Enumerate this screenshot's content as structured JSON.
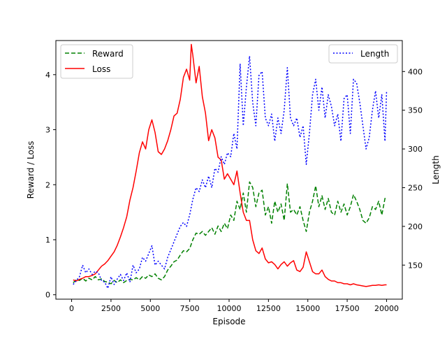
{
  "chart_data": {
    "type": "line",
    "xlabel": "Episode",
    "ylabel_left": "Reward / Loss",
    "ylabel_right": "Length",
    "xlim": [
      -1000,
      21000
    ],
    "ylim_left": [
      -0.08,
      4.62
    ],
    "ylim_right": [
      106,
      440
    ],
    "x_ticks": [
      0,
      2500,
      5000,
      7500,
      10000,
      12500,
      15000,
      17500,
      20000
    ],
    "y_ticks_left": [
      0,
      1,
      2,
      3,
      4
    ],
    "y_ticks_right": [
      150,
      200,
      250,
      300,
      350,
      400
    ],
    "grid": false,
    "legend_left": {
      "placement": "upper-left",
      "entries": [
        "Reward",
        "Loss"
      ]
    },
    "legend_right": {
      "placement": "upper-right",
      "entries": [
        "Length"
      ]
    },
    "series": [
      {
        "name": "Reward",
        "axis": "left",
        "color": "#008000",
        "style": "dashed",
        "points": [
          [
            100,
            0.22
          ],
          [
            300,
            0.27
          ],
          [
            500,
            0.26
          ],
          [
            700,
            0.3
          ],
          [
            900,
            0.25
          ],
          [
            1100,
            0.3
          ],
          [
            1300,
            0.27
          ],
          [
            1500,
            0.33
          ],
          [
            1700,
            0.27
          ],
          [
            1900,
            0.29
          ],
          [
            2100,
            0.24
          ],
          [
            2300,
            0.23
          ],
          [
            2500,
            0.2
          ],
          [
            2700,
            0.26
          ],
          [
            2900,
            0.22
          ],
          [
            3100,
            0.27
          ],
          [
            3300,
            0.22
          ],
          [
            3500,
            0.26
          ],
          [
            3700,
            0.28
          ],
          [
            3900,
            0.27
          ],
          [
            4100,
            0.31
          ],
          [
            4300,
            0.27
          ],
          [
            4500,
            0.33
          ],
          [
            4700,
            0.3
          ],
          [
            4900,
            0.36
          ],
          [
            5100,
            0.33
          ],
          [
            5300,
            0.38
          ],
          [
            5500,
            0.3
          ],
          [
            5700,
            0.27
          ],
          [
            5900,
            0.33
          ],
          [
            6100,
            0.45
          ],
          [
            6300,
            0.52
          ],
          [
            6500,
            0.6
          ],
          [
            6700,
            0.63
          ],
          [
            6900,
            0.72
          ],
          [
            7100,
            0.8
          ],
          [
            7300,
            0.78
          ],
          [
            7500,
            0.84
          ],
          [
            7700,
            1.0
          ],
          [
            7900,
            1.12
          ],
          [
            8100,
            1.1
          ],
          [
            8300,
            1.15
          ],
          [
            8500,
            1.08
          ],
          [
            8700,
            1.15
          ],
          [
            8900,
            1.22
          ],
          [
            9100,
            1.1
          ],
          [
            9300,
            1.25
          ],
          [
            9500,
            1.15
          ],
          [
            9700,
            1.3
          ],
          [
            9900,
            1.2
          ],
          [
            10100,
            1.45
          ],
          [
            10300,
            1.35
          ],
          [
            10500,
            1.7
          ],
          [
            10700,
            1.55
          ],
          [
            10900,
            1.85
          ],
          [
            11100,
            1.5
          ],
          [
            11300,
            2.05
          ],
          [
            11500,
            1.95
          ],
          [
            11700,
            1.6
          ],
          [
            11900,
            1.85
          ],
          [
            12100,
            1.9
          ],
          [
            12300,
            1.45
          ],
          [
            12500,
            1.6
          ],
          [
            12700,
            1.3
          ],
          [
            12900,
            1.7
          ],
          [
            13100,
            1.5
          ],
          [
            13300,
            1.65
          ],
          [
            13500,
            1.35
          ],
          [
            13700,
            2.02
          ],
          [
            13900,
            1.5
          ],
          [
            14100,
            1.55
          ],
          [
            14300,
            1.45
          ],
          [
            14500,
            1.6
          ],
          [
            14700,
            1.35
          ],
          [
            14900,
            1.15
          ],
          [
            15100,
            1.5
          ],
          [
            15300,
            1.7
          ],
          [
            15500,
            1.98
          ],
          [
            15700,
            1.6
          ],
          [
            15900,
            1.8
          ],
          [
            16100,
            1.55
          ],
          [
            16300,
            1.75
          ],
          [
            16500,
            1.5
          ],
          [
            16700,
            1.45
          ],
          [
            16900,
            1.7
          ],
          [
            17100,
            1.5
          ],
          [
            17300,
            1.65
          ],
          [
            17500,
            1.45
          ],
          [
            17700,
            1.6
          ],
          [
            17900,
            1.82
          ],
          [
            18100,
            1.7
          ],
          [
            18300,
            1.55
          ],
          [
            18500,
            1.35
          ],
          [
            18700,
            1.3
          ],
          [
            18900,
            1.4
          ],
          [
            19100,
            1.6
          ],
          [
            19300,
            1.55
          ],
          [
            19500,
            1.7
          ],
          [
            19700,
            1.45
          ],
          [
            19900,
            1.75
          ],
          [
            20000,
            1.75
          ]
        ]
      },
      {
        "name": "Loss",
        "axis": "left",
        "color": "#ff0000",
        "style": "solid",
        "points": [
          [
            100,
            0.27
          ],
          [
            300,
            0.25
          ],
          [
            500,
            0.28
          ],
          [
            700,
            0.3
          ],
          [
            900,
            0.33
          ],
          [
            1100,
            0.33
          ],
          [
            1300,
            0.35
          ],
          [
            1500,
            0.38
          ],
          [
            1700,
            0.45
          ],
          [
            1900,
            0.52
          ],
          [
            2100,
            0.56
          ],
          [
            2300,
            0.62
          ],
          [
            2500,
            0.7
          ],
          [
            2700,
            0.78
          ],
          [
            2900,
            0.9
          ],
          [
            3100,
            1.05
          ],
          [
            3300,
            1.22
          ],
          [
            3500,
            1.42
          ],
          [
            3700,
            1.72
          ],
          [
            3900,
            1.95
          ],
          [
            4100,
            2.25
          ],
          [
            4300,
            2.58
          ],
          [
            4500,
            2.78
          ],
          [
            4700,
            2.65
          ],
          [
            4900,
            3.0
          ],
          [
            5100,
            3.18
          ],
          [
            5300,
            2.95
          ],
          [
            5500,
            2.6
          ],
          [
            5700,
            2.55
          ],
          [
            5900,
            2.65
          ],
          [
            6100,
            2.8
          ],
          [
            6300,
            3.0
          ],
          [
            6500,
            3.25
          ],
          [
            6700,
            3.3
          ],
          [
            6900,
            3.55
          ],
          [
            7100,
            3.95
          ],
          [
            7300,
            4.1
          ],
          [
            7500,
            3.9
          ],
          [
            7600,
            4.55
          ],
          [
            7700,
            4.35
          ],
          [
            7900,
            3.85
          ],
          [
            8100,
            4.15
          ],
          [
            8300,
            3.6
          ],
          [
            8500,
            3.3
          ],
          [
            8700,
            2.8
          ],
          [
            8900,
            3.0
          ],
          [
            9100,
            2.85
          ],
          [
            9300,
            2.5
          ],
          [
            9500,
            2.45
          ],
          [
            9700,
            2.1
          ],
          [
            9900,
            2.2
          ],
          [
            10100,
            2.1
          ],
          [
            10300,
            2.0
          ],
          [
            10500,
            2.25
          ],
          [
            10700,
            1.85
          ],
          [
            10900,
            1.5
          ],
          [
            11100,
            1.35
          ],
          [
            11300,
            1.35
          ],
          [
            11500,
            1.0
          ],
          [
            11700,
            0.8
          ],
          [
            11900,
            0.75
          ],
          [
            12100,
            0.85
          ],
          [
            12300,
            0.65
          ],
          [
            12500,
            0.58
          ],
          [
            12700,
            0.6
          ],
          [
            12900,
            0.55
          ],
          [
            13100,
            0.47
          ],
          [
            13300,
            0.55
          ],
          [
            13500,
            0.6
          ],
          [
            13700,
            0.52
          ],
          [
            13900,
            0.58
          ],
          [
            14100,
            0.62
          ],
          [
            14300,
            0.45
          ],
          [
            14500,
            0.42
          ],
          [
            14700,
            0.5
          ],
          [
            14900,
            0.78
          ],
          [
            15100,
            0.6
          ],
          [
            15300,
            0.42
          ],
          [
            15500,
            0.38
          ],
          [
            15700,
            0.38
          ],
          [
            15900,
            0.45
          ],
          [
            16100,
            0.33
          ],
          [
            16300,
            0.28
          ],
          [
            16500,
            0.25
          ],
          [
            16700,
            0.25
          ],
          [
            16900,
            0.22
          ],
          [
            17100,
            0.22
          ],
          [
            17300,
            0.2
          ],
          [
            17500,
            0.2
          ],
          [
            17700,
            0.18
          ],
          [
            17900,
            0.2
          ],
          [
            18100,
            0.18
          ],
          [
            18300,
            0.17
          ],
          [
            18500,
            0.16
          ],
          [
            18700,
            0.15
          ],
          [
            18900,
            0.16
          ],
          [
            19100,
            0.17
          ],
          [
            19300,
            0.17
          ],
          [
            19500,
            0.18
          ],
          [
            19700,
            0.17
          ],
          [
            19900,
            0.18
          ],
          [
            20000,
            0.18
          ]
        ]
      },
      {
        "name": "Length",
        "axis": "right",
        "color": "#0000ff",
        "style": "dotted",
        "points": [
          [
            100,
            125
          ],
          [
            300,
            130
          ],
          [
            500,
            135
          ],
          [
            700,
            150
          ],
          [
            900,
            140
          ],
          [
            1100,
            145
          ],
          [
            1300,
            138
          ],
          [
            1500,
            142
          ],
          [
            1700,
            140
          ],
          [
            1900,
            130
          ],
          [
            2100,
            128
          ],
          [
            2300,
            120
          ],
          [
            2500,
            135
          ],
          [
            2700,
            125
          ],
          [
            2900,
            132
          ],
          [
            3100,
            138
          ],
          [
            3300,
            130
          ],
          [
            3500,
            140
          ],
          [
            3700,
            128
          ],
          [
            3900,
            150
          ],
          [
            4100,
            140
          ],
          [
            4300,
            145
          ],
          [
            4500,
            160
          ],
          [
            4700,
            155
          ],
          [
            4900,
            165
          ],
          [
            5100,
            175
          ],
          [
            5300,
            150
          ],
          [
            5500,
            155
          ],
          [
            5700,
            150
          ],
          [
            5900,
            145
          ],
          [
            6100,
            160
          ],
          [
            6300,
            170
          ],
          [
            6500,
            180
          ],
          [
            6700,
            190
          ],
          [
            6900,
            200
          ],
          [
            7100,
            205
          ],
          [
            7300,
            200
          ],
          [
            7500,
            215
          ],
          [
            7700,
            235
          ],
          [
            7900,
            250
          ],
          [
            8100,
            245
          ],
          [
            8300,
            260
          ],
          [
            8500,
            250
          ],
          [
            8700,
            265
          ],
          [
            8900,
            250
          ],
          [
            9100,
            275
          ],
          [
            9300,
            270
          ],
          [
            9500,
            290
          ],
          [
            9700,
            280
          ],
          [
            9900,
            295
          ],
          [
            10100,
            290
          ],
          [
            10300,
            320
          ],
          [
            10500,
            300
          ],
          [
            10700,
            410
          ],
          [
            10900,
            330
          ],
          [
            11100,
            380
          ],
          [
            11300,
            420
          ],
          [
            11500,
            360
          ],
          [
            11700,
            330
          ],
          [
            11900,
            395
          ],
          [
            12100,
            400
          ],
          [
            12300,
            340
          ],
          [
            12500,
            330
          ],
          [
            12700,
            345
          ],
          [
            12900,
            310
          ],
          [
            13100,
            340
          ],
          [
            13300,
            320
          ],
          [
            13500,
            350
          ],
          [
            13700,
            405
          ],
          [
            13900,
            340
          ],
          [
            14100,
            330
          ],
          [
            14300,
            340
          ],
          [
            14500,
            315
          ],
          [
            14700,
            330
          ],
          [
            14900,
            280
          ],
          [
            15100,
            320
          ],
          [
            15300,
            370
          ],
          [
            15500,
            390
          ],
          [
            15700,
            350
          ],
          [
            15900,
            380
          ],
          [
            16100,
            340
          ],
          [
            16300,
            370
          ],
          [
            16500,
            355
          ],
          [
            16700,
            330
          ],
          [
            16900,
            345
          ],
          [
            17100,
            310
          ],
          [
            17300,
            365
          ],
          [
            17500,
            370
          ],
          [
            17700,
            320
          ],
          [
            17900,
            390
          ],
          [
            18100,
            385
          ],
          [
            18300,
            360
          ],
          [
            18500,
            330
          ],
          [
            18700,
            300
          ],
          [
            18900,
            315
          ],
          [
            19100,
            350
          ],
          [
            19300,
            375
          ],
          [
            19500,
            340
          ],
          [
            19700,
            370
          ],
          [
            19900,
            310
          ],
          [
            20000,
            375
          ]
        ]
      }
    ]
  }
}
